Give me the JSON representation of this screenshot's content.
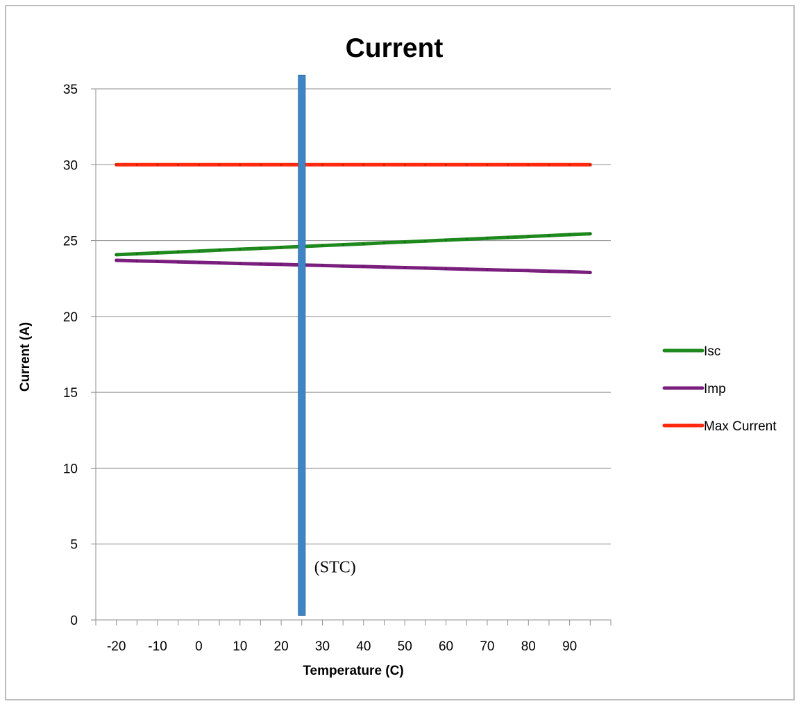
{
  "chart_data": {
    "type": "line",
    "title": "Current",
    "xlabel": "Temperature (C)",
    "ylabel": "Current (A)",
    "xlim": [
      -25,
      100
    ],
    "ylim": [
      0,
      35
    ],
    "x_ticks": [
      -20,
      -10,
      0,
      10,
      20,
      30,
      40,
      50,
      60,
      70,
      80,
      90
    ],
    "y_ticks": [
      0,
      5,
      10,
      15,
      20,
      25,
      30,
      35
    ],
    "x_tick_step_minor": 5,
    "grid": "horizontal",
    "legend_position": "right",
    "x": [
      -20,
      -15,
      -10,
      -5,
      0,
      5,
      10,
      15,
      20,
      25,
      30,
      35,
      40,
      45,
      50,
      55,
      60,
      65,
      70,
      75,
      80,
      85,
      90,
      95
    ],
    "series": [
      {
        "name": "Isc",
        "color": "#1e8a1e",
        "values": [
          24.07,
          24.13,
          24.19,
          24.25,
          24.31,
          24.37,
          24.43,
          24.49,
          24.55,
          24.61,
          24.67,
          24.73,
          24.79,
          24.85,
          24.91,
          24.97,
          25.03,
          25.09,
          25.15,
          25.21,
          25.27,
          25.33,
          25.39,
          25.45
        ]
      },
      {
        "name": "Imp",
        "color": "#7b1f7f",
        "values": [
          23.7,
          23.66,
          23.63,
          23.6,
          23.56,
          23.53,
          23.49,
          23.46,
          23.43,
          23.39,
          23.36,
          23.32,
          23.29,
          23.25,
          23.22,
          23.19,
          23.15,
          23.12,
          23.08,
          23.05,
          23.02,
          22.98,
          22.95,
          22.9
        ]
      },
      {
        "name": "Max Current",
        "color": "#ff2a0d",
        "values": [
          30,
          30,
          30,
          30,
          30,
          30,
          30,
          30,
          30,
          30,
          30,
          30,
          30,
          30,
          30,
          30,
          30,
          30,
          30,
          30,
          30,
          30,
          30,
          30
        ]
      }
    ],
    "reference_line": {
      "x": 25,
      "y_range": [
        0.3,
        35.9
      ],
      "color": "#3d85c6",
      "label": "(STC)"
    }
  }
}
